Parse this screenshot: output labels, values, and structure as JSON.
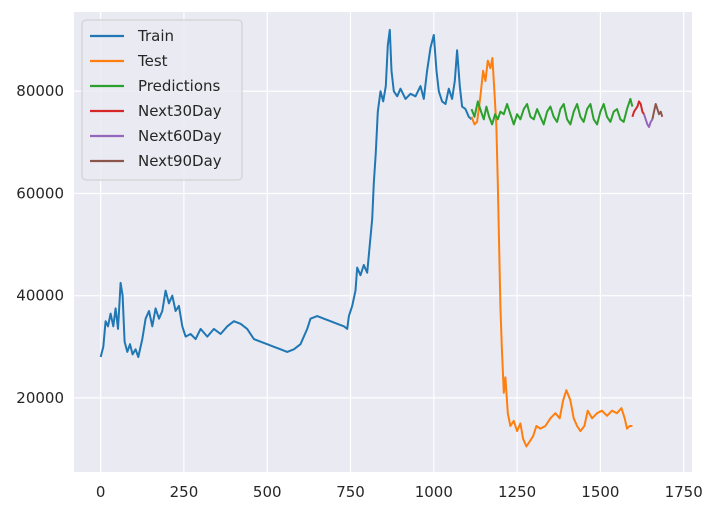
{
  "chart_data": {
    "type": "line",
    "title": "",
    "xlabel": "",
    "ylabel": "",
    "xlim": [
      -80,
      1775
    ],
    "ylim": [
      5500,
      95500
    ],
    "xticks": [
      0,
      250,
      500,
      750,
      1000,
      1250,
      1500,
      1750
    ],
    "yticks": [
      20000,
      40000,
      60000,
      80000
    ],
    "grid": true,
    "background": "#eaeaf2",
    "legend_position": "top-left",
    "series": [
      {
        "name": "Train",
        "color": "#1f77b4",
        "points": [
          [
            0,
            28000
          ],
          [
            8,
            30000
          ],
          [
            15,
            35000
          ],
          [
            22,
            34000
          ],
          [
            30,
            36500
          ],
          [
            38,
            34000
          ],
          [
            45,
            37500
          ],
          [
            52,
            33500
          ],
          [
            60,
            42500
          ],
          [
            66,
            40000
          ],
          [
            72,
            31000
          ],
          [
            80,
            29000
          ],
          [
            88,
            30500
          ],
          [
            96,
            28500
          ],
          [
            105,
            29500
          ],
          [
            113,
            28000
          ],
          [
            125,
            31500
          ],
          [
            135,
            35500
          ],
          [
            145,
            37000
          ],
          [
            155,
            34000
          ],
          [
            165,
            37500
          ],
          [
            175,
            35500
          ],
          [
            185,
            37000
          ],
          [
            195,
            41000
          ],
          [
            205,
            38500
          ],
          [
            215,
            40000
          ],
          [
            225,
            37000
          ],
          [
            235,
            38000
          ],
          [
            245,
            34000
          ],
          [
            255,
            32000
          ],
          [
            270,
            32500
          ],
          [
            285,
            31500
          ],
          [
            300,
            33500
          ],
          [
            320,
            32000
          ],
          [
            340,
            33500
          ],
          [
            360,
            32500
          ],
          [
            380,
            34000
          ],
          [
            400,
            35000
          ],
          [
            420,
            34500
          ],
          [
            440,
            33500
          ],
          [
            460,
            31500
          ],
          [
            480,
            31000
          ],
          [
            500,
            30500
          ],
          [
            520,
            30000
          ],
          [
            540,
            29500
          ],
          [
            560,
            29000
          ],
          [
            580,
            29500
          ],
          [
            600,
            30500
          ],
          [
            620,
            33500
          ],
          [
            630,
            35500
          ],
          [
            650,
            36000
          ],
          [
            670,
            35500
          ],
          [
            690,
            35000
          ],
          [
            710,
            34500
          ],
          [
            730,
            34000
          ],
          [
            740,
            33500
          ],
          [
            745,
            36000
          ],
          [
            755,
            38000
          ],
          [
            765,
            41000
          ],
          [
            770,
            45500
          ],
          [
            780,
            44000
          ],
          [
            790,
            46000
          ],
          [
            800,
            44500
          ],
          [
            808,
            50000
          ],
          [
            815,
            55000
          ],
          [
            820,
            62000
          ],
          [
            826,
            68000
          ],
          [
            832,
            76000
          ],
          [
            840,
            80000
          ],
          [
            848,
            78000
          ],
          [
            856,
            81000
          ],
          [
            862,
            89000
          ],
          [
            868,
            92000
          ],
          [
            873,
            84000
          ],
          [
            880,
            80000
          ],
          [
            890,
            79000
          ],
          [
            900,
            80500
          ],
          [
            915,
            78500
          ],
          [
            930,
            79500
          ],
          [
            945,
            79000
          ],
          [
            960,
            81000
          ],
          [
            970,
            78500
          ],
          [
            980,
            84000
          ],
          [
            990,
            88500
          ],
          [
            1000,
            91000
          ],
          [
            1008,
            84000
          ],
          [
            1015,
            80000
          ],
          [
            1025,
            78000
          ],
          [
            1035,
            77500
          ],
          [
            1045,
            80500
          ],
          [
            1055,
            78500
          ],
          [
            1063,
            82000
          ],
          [
            1070,
            88000
          ],
          [
            1078,
            81000
          ],
          [
            1085,
            77000
          ],
          [
            1095,
            76500
          ],
          [
            1105,
            75000
          ],
          [
            1113,
            74500
          ]
        ]
      },
      {
        "name": "Test",
        "color": "#ff7f0e",
        "points": [
          [
            1113,
            75000
          ],
          [
            1122,
            73500
          ],
          [
            1130,
            74000
          ],
          [
            1140,
            79000
          ],
          [
            1148,
            84000
          ],
          [
            1155,
            82000
          ],
          [
            1162,
            86000
          ],
          [
            1170,
            84500
          ],
          [
            1176,
            86500
          ],
          [
            1182,
            80000
          ],
          [
            1188,
            73000
          ],
          [
            1192,
            62000
          ],
          [
            1196,
            50000
          ],
          [
            1200,
            38000
          ],
          [
            1204,
            30000
          ],
          [
            1210,
            21000
          ],
          [
            1215,
            24000
          ],
          [
            1222,
            17000
          ],
          [
            1230,
            14500
          ],
          [
            1240,
            15500
          ],
          [
            1250,
            13500
          ],
          [
            1260,
            15000
          ],
          [
            1268,
            12000
          ],
          [
            1278,
            10500
          ],
          [
            1288,
            11500
          ],
          [
            1298,
            12500
          ],
          [
            1308,
            14500
          ],
          [
            1320,
            14000
          ],
          [
            1335,
            14500
          ],
          [
            1350,
            16000
          ],
          [
            1365,
            17000
          ],
          [
            1378,
            16000
          ],
          [
            1388,
            19500
          ],
          [
            1398,
            21500
          ],
          [
            1410,
            19500
          ],
          [
            1420,
            16000
          ],
          [
            1430,
            14500
          ],
          [
            1440,
            13500
          ],
          [
            1452,
            14500
          ],
          [
            1462,
            17500
          ],
          [
            1475,
            16000
          ],
          [
            1490,
            17000
          ],
          [
            1505,
            17500
          ],
          [
            1520,
            16500
          ],
          [
            1535,
            17500
          ],
          [
            1550,
            17000
          ],
          [
            1563,
            18000
          ],
          [
            1573,
            16000
          ],
          [
            1580,
            14000
          ],
          [
            1588,
            14500
          ],
          [
            1596,
            14500
          ]
        ]
      },
      {
        "name": "Predictions",
        "color": "#2ca02c",
        "points": [
          [
            1113,
            76500
          ],
          [
            1122,
            75000
          ],
          [
            1132,
            78000
          ],
          [
            1142,
            76000
          ],
          [
            1150,
            74500
          ],
          [
            1158,
            77000
          ],
          [
            1166,
            75000
          ],
          [
            1175,
            73500
          ],
          [
            1184,
            75500
          ],
          [
            1192,
            74500
          ],
          [
            1200,
            76000
          ],
          [
            1210,
            75500
          ],
          [
            1220,
            77500
          ],
          [
            1230,
            75500
          ],
          [
            1240,
            73500
          ],
          [
            1250,
            75500
          ],
          [
            1260,
            74500
          ],
          [
            1270,
            76500
          ],
          [
            1280,
            77500
          ],
          [
            1290,
            75000
          ],
          [
            1300,
            74500
          ],
          [
            1310,
            76500
          ],
          [
            1320,
            75000
          ],
          [
            1330,
            73500
          ],
          [
            1340,
            76000
          ],
          [
            1350,
            77000
          ],
          [
            1360,
            75000
          ],
          [
            1370,
            74000
          ],
          [
            1380,
            76500
          ],
          [
            1390,
            77500
          ],
          [
            1400,
            74500
          ],
          [
            1410,
            73500
          ],
          [
            1420,
            76000
          ],
          [
            1430,
            77500
          ],
          [
            1440,
            75000
          ],
          [
            1450,
            74000
          ],
          [
            1460,
            76500
          ],
          [
            1470,
            77500
          ],
          [
            1480,
            74500
          ],
          [
            1490,
            73500
          ],
          [
            1500,
            76000
          ],
          [
            1510,
            77500
          ],
          [
            1520,
            75000
          ],
          [
            1530,
            74000
          ],
          [
            1540,
            76000
          ],
          [
            1550,
            76500
          ],
          [
            1560,
            74500
          ],
          [
            1570,
            74000
          ],
          [
            1580,
            76500
          ],
          [
            1590,
            78500
          ],
          [
            1596,
            77000
          ]
        ]
      },
      {
        "name": "Next30Day",
        "color": "#d62728",
        "points": [
          [
            1596,
            75000
          ],
          [
            1601,
            76000
          ],
          [
            1606,
            76500
          ],
          [
            1611,
            77000
          ],
          [
            1616,
            78000
          ],
          [
            1621,
            77500
          ],
          [
            1626,
            76000
          ],
          [
            1631,
            75500
          ]
        ]
      },
      {
        "name": "Next60Day",
        "color": "#9467bd",
        "points": [
          [
            1631,
            75500
          ],
          [
            1636,
            74500
          ],
          [
            1641,
            73500
          ],
          [
            1646,
            73000
          ],
          [
            1651,
            74000
          ],
          [
            1656,
            74500
          ]
        ]
      },
      {
        "name": "Next90Day",
        "color": "#8c564b",
        "points": [
          [
            1656,
            74500
          ],
          [
            1661,
            76000
          ],
          [
            1666,
            77500
          ],
          [
            1671,
            76500
          ],
          [
            1676,
            75500
          ],
          [
            1681,
            76000
          ],
          [
            1686,
            75000
          ]
        ]
      }
    ]
  }
}
